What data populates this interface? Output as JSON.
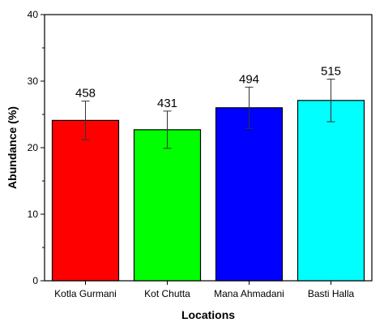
{
  "chart_data": {
    "type": "bar",
    "title": "",
    "xlabel": "Locations",
    "ylabel": "Abundance (%)",
    "ylim": [
      0,
      40
    ],
    "yticks": [
      0,
      10,
      20,
      30,
      40
    ],
    "grid": false,
    "categories": [
      "Kotla Gurmani",
      "Kot Chutta",
      "Mana Ahmadani",
      "Basti Halla"
    ],
    "values": [
      24.1,
      22.7,
      26.0,
      27.1
    ],
    "error": [
      2.9,
      2.8,
      3.1,
      3.2
    ],
    "data_labels": [
      "458",
      "431",
      "494",
      "515"
    ],
    "colors": [
      "#ff0000",
      "#00ff00",
      "#0000ff",
      "#00ffff"
    ]
  }
}
